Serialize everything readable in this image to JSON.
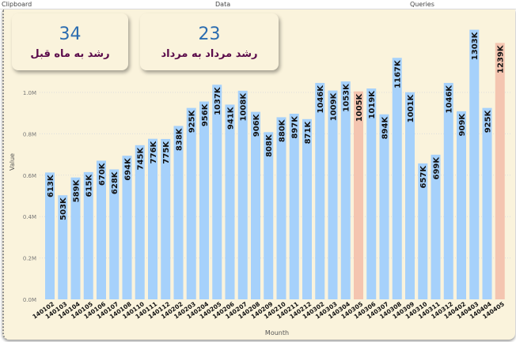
{
  "ribbon": {
    "groups": [
      "Clipboard",
      "Data",
      "Queries"
    ]
  },
  "cards": [
    {
      "value": "34",
      "label": "رشد به ماه قبل"
    },
    {
      "value": "23",
      "label": "رشد مرداد به مرداد"
    }
  ],
  "colors": {
    "bar": "#a6d1fb",
    "highlight": "#f4c5b0",
    "card_value": "#2b6cb0",
    "card_label": "#5a0a4a",
    "background": "#faf3dc"
  },
  "chart_data": {
    "type": "bar",
    "xlabel": "Mounth",
    "ylabel": "Value",
    "ylim": [
      0,
      1400000
    ],
    "yticks": [
      "0.0M",
      "0.2M",
      "0.4M",
      "0.6M",
      "0.8M",
      "1.0M"
    ],
    "grid": true,
    "categories": [
      "140102",
      "140103",
      "140104",
      "140105",
      "140106",
      "140107",
      "140108",
      "140110",
      "140111",
      "140112",
      "140202",
      "140203",
      "140204",
      "140205",
      "140206",
      "140207",
      "140208",
      "140209",
      "140210",
      "140211",
      "140212",
      "140302",
      "140303",
      "140304",
      "140305",
      "140306",
      "140307",
      "140308",
      "140309",
      "140310",
      "140311",
      "140312",
      "140402",
      "140403",
      "140404",
      "140405"
    ],
    "values": [
      613,
      503,
      589,
      615,
      670,
      628,
      694,
      745,
      776,
      775,
      838,
      925,
      956,
      1037,
      941,
      1008,
      906,
      808,
      880,
      897,
      871,
      1046,
      1009,
      1053,
      1005,
      1019,
      894,
      1167,
      1001,
      657,
      699,
      1046,
      909,
      1303,
      925,
      1239
    ],
    "value_unit": "K",
    "highlighted": [
      "140305",
      "140405"
    ]
  }
}
